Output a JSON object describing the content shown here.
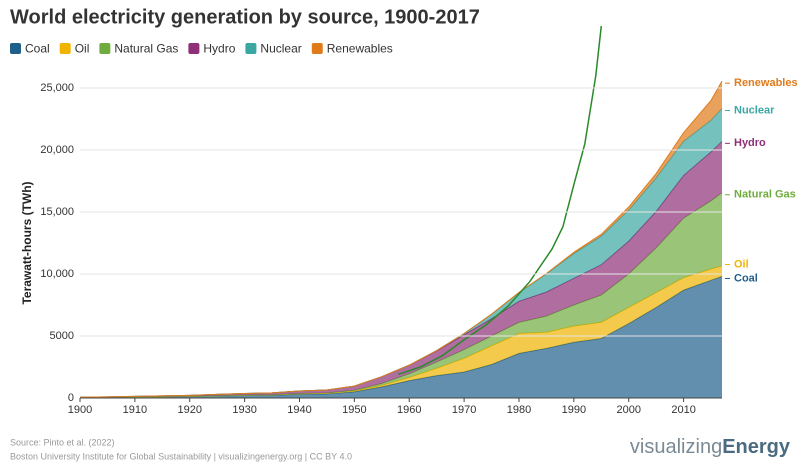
{
  "chart_data": {
    "type": "stacked_area",
    "title": "World electricity generation by source, 1900-2017",
    "y_label": "Terawatt-hours (TWh)",
    "x": [
      1900,
      1905,
      1910,
      1915,
      1920,
      1925,
      1930,
      1935,
      1940,
      1945,
      1950,
      1955,
      1960,
      1965,
      1970,
      1975,
      1980,
      1985,
      1990,
      1995,
      2000,
      2005,
      2010,
      2015,
      2017
    ],
    "series": [
      {
        "name": "Coal",
        "color": "#1f5f8b",
        "values": [
          40,
          60,
          80,
          100,
          130,
          170,
          200,
          220,
          300,
          330,
          500,
          900,
          1400,
          1800,
          2100,
          2700,
          3600,
          4000,
          4500,
          4800,
          6000,
          7300,
          8700,
          9500,
          9800
        ]
      },
      {
        "name": "Oil",
        "color": "#f0b400",
        "values": [
          0,
          0,
          0,
          0,
          0,
          10,
          20,
          30,
          40,
          40,
          60,
          120,
          250,
          600,
          1100,
          1500,
          1600,
          1300,
          1300,
          1300,
          1300,
          1200,
          1000,
          900,
          850
        ]
      },
      {
        "name": "Natural Gas",
        "color": "#6fac3e",
        "values": [
          0,
          0,
          0,
          0,
          0,
          5,
          10,
          15,
          20,
          30,
          60,
          150,
          300,
          500,
          700,
          800,
          900,
          1300,
          1700,
          2200,
          2700,
          3600,
          4800,
          5500,
          5900
        ]
      },
      {
        "name": "Hydro",
        "color": "#8e2f78",
        "values": [
          20,
          30,
          50,
          70,
          80,
          110,
          130,
          150,
          200,
          250,
          340,
          550,
          690,
          900,
          1200,
          1400,
          1700,
          1950,
          2150,
          2450,
          2650,
          2950,
          3450,
          3950,
          4150
        ]
      },
      {
        "name": "Nuclear",
        "color": "#3aa7a3",
        "values": [
          0,
          0,
          0,
          0,
          0,
          0,
          0,
          0,
          0,
          0,
          0,
          0,
          10,
          30,
          100,
          350,
          700,
          1450,
          2000,
          2300,
          2500,
          2700,
          2750,
          2550,
          2650
        ]
      },
      {
        "name": "Renewables",
        "color": "#e07b1a",
        "values": [
          0,
          0,
          0,
          0,
          0,
          0,
          0,
          0,
          0,
          0,
          0,
          0,
          0,
          0,
          0,
          10,
          20,
          40,
          100,
          150,
          250,
          350,
          700,
          1600,
          2200
        ]
      }
    ],
    "trend_line": {
      "color": "#2a8a2a",
      "x": [
        1958,
        1962,
        1966,
        1970,
        1974,
        1978,
        1982,
        1986,
        1988,
        1990,
        1992,
        1994,
        1995
      ],
      "values": [
        1900,
        2500,
        3400,
        4700,
        5900,
        7400,
        9400,
        12000,
        13800,
        17200,
        20500,
        26000,
        30000
      ]
    },
    "xlim": [
      1900,
      2017
    ],
    "xticks": [
      1900,
      1910,
      1920,
      1930,
      1940,
      1950,
      1960,
      1970,
      1980,
      1990,
      2000,
      2010
    ],
    "ylim": [
      0,
      30000
    ],
    "yticks": [
      0,
      5000,
      {
        "value": 10000,
        "label": "10,000"
      },
      {
        "value": 15000,
        "label": "15,000"
      },
      {
        "value": 20000,
        "label": "20,000"
      },
      {
        "value": 25000,
        "label": "25,000"
      }
    ],
    "grid": true,
    "legend": "top-left",
    "source": "Source: Pinto et al. (2022)",
    "credit": "Boston University Institute for Global Sustainability | visualizingenergy.org | CC BY 4.0",
    "logo": {
      "light": "visualizing",
      "bold": "Energy"
    }
  }
}
